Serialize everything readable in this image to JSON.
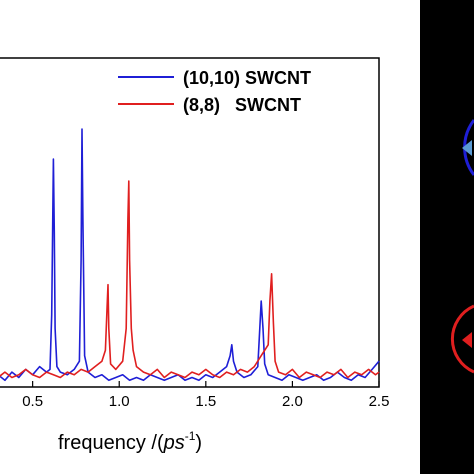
{
  "chart_data": {
    "type": "line",
    "title": "",
    "xlabel_prefix": "frequency /(",
    "xlabel_unit": "ps",
    "xlabel_exp": "-1",
    "xlabel_suffix": ")",
    "ylabel": "",
    "xlim": [
      0.3,
      2.5
    ],
    "ylim": [
      0,
      1.0
    ],
    "x_ticks": [
      0.5,
      1.0,
      1.5,
      2.0,
      2.5
    ],
    "x_tick_labels": [
      "0.5",
      "1.0",
      "1.5",
      "2.0",
      "2.5"
    ],
    "grid": false,
    "legend_position": "top-right",
    "series": [
      {
        "name": "(10,10) SWCNT",
        "color": "#1f1fd6",
        "x": [
          0.3,
          0.34,
          0.38,
          0.42,
          0.46,
          0.5,
          0.54,
          0.58,
          0.6,
          0.61,
          0.62,
          0.625,
          0.63,
          0.64,
          0.66,
          0.7,
          0.74,
          0.77,
          0.78,
          0.785,
          0.79,
          0.8,
          0.82,
          0.86,
          0.9,
          0.94,
          0.98,
          1.02,
          1.06,
          1.1,
          1.14,
          1.18,
          1.22,
          1.26,
          1.3,
          1.34,
          1.38,
          1.42,
          1.46,
          1.5,
          1.54,
          1.58,
          1.62,
          1.64,
          1.65,
          1.66,
          1.68,
          1.72,
          1.76,
          1.8,
          1.81,
          1.82,
          1.83,
          1.84,
          1.86,
          1.9,
          1.94,
          1.98,
          2.02,
          2.06,
          2.1,
          2.14,
          2.18,
          2.22,
          2.26,
          2.3,
          2.34,
          2.38,
          2.42,
          2.46,
          2.5
        ],
        "y": [
          0.03,
          0.01,
          0.04,
          0.02,
          0.05,
          0.03,
          0.06,
          0.04,
          0.05,
          0.25,
          0.82,
          0.55,
          0.2,
          0.06,
          0.04,
          0.03,
          0.05,
          0.08,
          0.45,
          0.93,
          0.6,
          0.1,
          0.04,
          0.02,
          0.03,
          0.01,
          0.02,
          0.03,
          0.01,
          0.02,
          0.01,
          0.03,
          0.02,
          0.01,
          0.02,
          0.03,
          0.01,
          0.02,
          0.01,
          0.03,
          0.02,
          0.04,
          0.06,
          0.1,
          0.14,
          0.08,
          0.04,
          0.02,
          0.03,
          0.06,
          0.18,
          0.3,
          0.2,
          0.07,
          0.03,
          0.02,
          0.01,
          0.03,
          0.02,
          0.01,
          0.02,
          0.03,
          0.01,
          0.02,
          0.04,
          0.02,
          0.01,
          0.03,
          0.02,
          0.05,
          0.08
        ]
      },
      {
        "name": "(8,8)   SWCNT",
        "color": "#e01f1f",
        "x": [
          0.3,
          0.34,
          0.38,
          0.42,
          0.46,
          0.5,
          0.54,
          0.58,
          0.62,
          0.66,
          0.7,
          0.74,
          0.78,
          0.82,
          0.86,
          0.9,
          0.92,
          0.93,
          0.935,
          0.94,
          0.95,
          0.98,
          1.02,
          1.04,
          1.05,
          1.055,
          1.06,
          1.07,
          1.08,
          1.1,
          1.14,
          1.18,
          1.22,
          1.26,
          1.3,
          1.34,
          1.38,
          1.42,
          1.46,
          1.5,
          1.54,
          1.58,
          1.62,
          1.66,
          1.7,
          1.74,
          1.78,
          1.82,
          1.86,
          1.87,
          1.88,
          1.89,
          1.9,
          1.92,
          1.96,
          2.0,
          2.04,
          2.08,
          2.12,
          2.16,
          2.2,
          2.24,
          2.28,
          2.32,
          2.36,
          2.4,
          2.44,
          2.48,
          2.5
        ],
        "y": [
          0.02,
          0.04,
          0.02,
          0.03,
          0.05,
          0.03,
          0.02,
          0.04,
          0.03,
          0.02,
          0.04,
          0.03,
          0.05,
          0.04,
          0.06,
          0.08,
          0.12,
          0.28,
          0.36,
          0.2,
          0.07,
          0.05,
          0.08,
          0.2,
          0.6,
          0.74,
          0.45,
          0.2,
          0.12,
          0.06,
          0.04,
          0.03,
          0.05,
          0.02,
          0.04,
          0.03,
          0.02,
          0.04,
          0.03,
          0.05,
          0.03,
          0.02,
          0.04,
          0.03,
          0.05,
          0.04,
          0.06,
          0.1,
          0.14,
          0.3,
          0.4,
          0.22,
          0.08,
          0.04,
          0.03,
          0.05,
          0.02,
          0.04,
          0.03,
          0.02,
          0.04,
          0.03,
          0.05,
          0.02,
          0.04,
          0.03,
          0.05,
          0.03,
          0.04
        ]
      }
    ]
  }
}
